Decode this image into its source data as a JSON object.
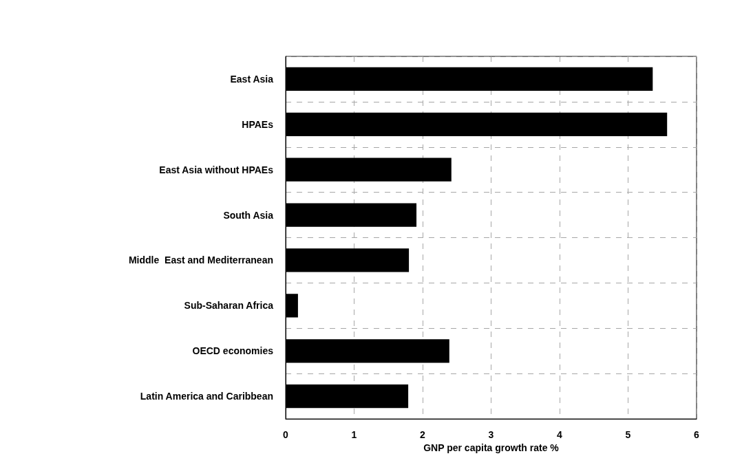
{
  "chart_data": {
    "type": "bar",
    "orientation": "horizontal",
    "xlabel": "GNP per capita growth rate %",
    "categories": [
      "East Asia",
      "HPAEs",
      "East Asia without HPAEs",
      "South Asia",
      "Middle  East and Mediterranean",
      "Sub-Saharan Africa",
      "OECD economies",
      "Latin America and Caribbean"
    ],
    "values": [
      5.36,
      5.57,
      2.42,
      1.91,
      1.8,
      0.18,
      2.39,
      1.79
    ],
    "color": "#000000",
    "xlim": [
      0,
      6
    ],
    "xticks": [
      0,
      1,
      2,
      3,
      4,
      5,
      6
    ],
    "grid": true
  }
}
